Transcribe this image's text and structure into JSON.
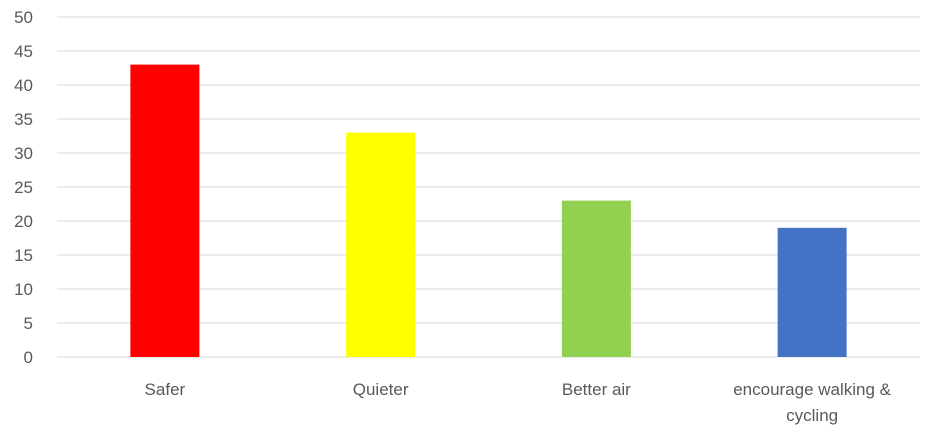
{
  "chart_data": {
    "type": "bar",
    "categories": [
      "Safer",
      "Quieter",
      "Better air",
      "encourage walking & cycling"
    ],
    "category_lines": [
      [
        "Safer"
      ],
      [
        "Quieter"
      ],
      [
        "Better air"
      ],
      [
        "encourage walking &",
        "cycling"
      ]
    ],
    "values": [
      43,
      33,
      23,
      19
    ],
    "colors": [
      "#ff0000",
      "#ffff00",
      "#92d050",
      "#4472c4"
    ],
    "ylim": [
      0,
      50
    ],
    "yticks": [
      0,
      5,
      10,
      15,
      20,
      25,
      30,
      35,
      40,
      45,
      50
    ],
    "grid": true,
    "legend": "none"
  }
}
